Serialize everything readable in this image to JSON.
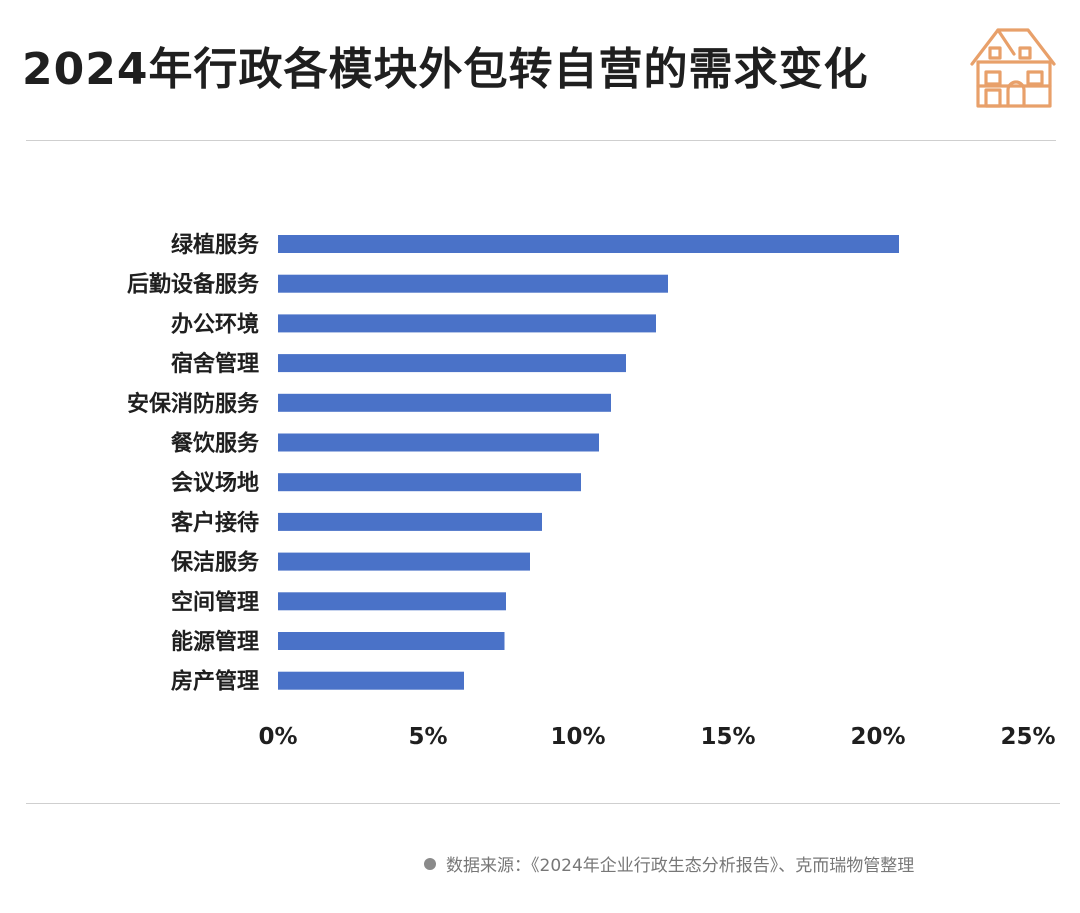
{
  "title": "2024年行政各模块外包转自营的需求变化",
  "logo_icon": "house-icon",
  "colors": {
    "bar": "#4a72c8",
    "logo": "#e8a06a",
    "text": "#1f1f1f"
  },
  "chart_data": {
    "type": "bar",
    "orientation": "horizontal",
    "categories": [
      "绿植服务",
      "后勤设备服务",
      "办公环境",
      "宿舍管理",
      "安保消防服务",
      "餐饮服务",
      "会议场地",
      "客户接待",
      "保洁服务",
      "空间管理",
      "能源管理",
      "房产管理"
    ],
    "values": [
      20.7,
      13.0,
      12.6,
      11.6,
      11.1,
      10.7,
      10.1,
      8.8,
      8.4,
      7.6,
      7.55,
      6.2
    ],
    "xlim": [
      0,
      25
    ],
    "xticks": [
      "0%",
      "5%",
      "10%",
      "15%",
      "20%",
      "25%"
    ],
    "grid": false,
    "title": "",
    "xlabel": "",
    "ylabel": ""
  },
  "source": "数据来源：《2024年企业行政生态分析报告》、克而瑞物管整理"
}
